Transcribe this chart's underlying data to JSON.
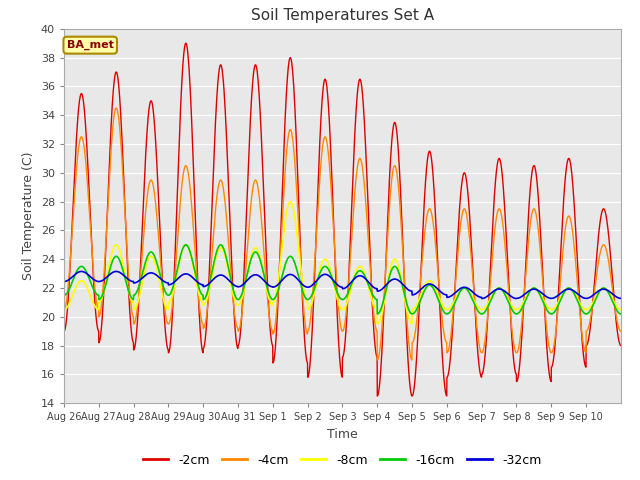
{
  "title": "Soil Temperatures Set A",
  "xlabel": "Time",
  "ylabel": "Soil Temperature (C)",
  "ylim": [
    14,
    40
  ],
  "yticks": [
    14,
    16,
    18,
    20,
    22,
    24,
    26,
    28,
    30,
    32,
    34,
    36,
    38,
    40
  ],
  "legend_label": "BA_met",
  "series_labels": [
    "-2cm",
    "-4cm",
    "-8cm",
    "-16cm",
    "-32cm"
  ],
  "series_colors": [
    "#dd0000",
    "#ff8800",
    "#ffff00",
    "#00cc00",
    "#0000dd"
  ],
  "n_days": 16,
  "x_tick_labels": [
    "Aug 26",
    "Aug 27",
    "Aug 28",
    "Aug 29",
    "Aug 30",
    "Aug 31",
    "Sep 1",
    "Sep 2",
    "Sep 3",
    "Sep 4",
    "Sep 5",
    "Sep 6",
    "Sep 7",
    "Sep 8",
    "Sep 9",
    "Sep 10"
  ],
  "day_peaks_2cm": [
    35.5,
    37.0,
    35.0,
    39.0,
    37.5,
    37.5,
    38.0,
    36.5,
    36.5,
    33.5,
    31.5,
    30.0,
    31.0,
    30.5,
    31.0,
    27.5
  ],
  "day_troughs_2cm": [
    19.0,
    18.2,
    17.7,
    17.5,
    17.8,
    18.0,
    16.8,
    15.8,
    17.2,
    14.5,
    14.5,
    15.8,
    16.0,
    15.5,
    16.5,
    18.0
  ],
  "day_peaks_4cm": [
    32.5,
    34.5,
    29.5,
    30.5,
    29.5,
    29.5,
    33.0,
    32.5,
    31.0,
    30.5,
    27.5,
    27.5,
    27.5,
    27.5,
    27.0,
    25.0
  ],
  "day_troughs_4cm": [
    20.5,
    20.0,
    19.5,
    19.5,
    19.2,
    19.0,
    18.8,
    19.0,
    19.0,
    17.0,
    18.2,
    17.5,
    17.5,
    17.5,
    17.5,
    19.0
  ],
  "day_peaks_8cm": [
    22.5,
    25.0,
    24.2,
    25.0,
    24.8,
    24.8,
    28.0,
    24.0,
    23.5,
    24.0,
    22.5,
    22.0,
    22.0,
    22.0,
    22.0,
    22.0
  ],
  "day_troughs_8cm": [
    20.5,
    21.0,
    20.5,
    21.0,
    20.8,
    20.8,
    21.0,
    20.5,
    20.5,
    19.5,
    20.5,
    20.5,
    20.5,
    20.5,
    20.5,
    20.5
  ],
  "day_peaks_16cm": [
    23.5,
    24.2,
    24.5,
    25.0,
    25.0,
    24.5,
    24.2,
    23.5,
    23.2,
    23.5,
    22.2,
    22.0,
    22.0,
    22.0,
    22.0,
    22.0
  ],
  "day_troughs_16cm": [
    21.5,
    21.2,
    21.5,
    21.5,
    21.2,
    21.2,
    21.2,
    21.2,
    21.2,
    20.2,
    20.2,
    20.2,
    20.2,
    20.2,
    20.2,
    20.2
  ],
  "day_mean_32cm": [
    22.8,
    22.8,
    22.7,
    22.6,
    22.5,
    22.5,
    22.5,
    22.5,
    22.4,
    22.2,
    21.9,
    21.7,
    21.6,
    21.6,
    21.6,
    21.6
  ],
  "day_amp_32cm": [
    0.35,
    0.35,
    0.35,
    0.38,
    0.4,
    0.42,
    0.44,
    0.45,
    0.45,
    0.42,
    0.38,
    0.35,
    0.33,
    0.32,
    0.32,
    0.32
  ]
}
